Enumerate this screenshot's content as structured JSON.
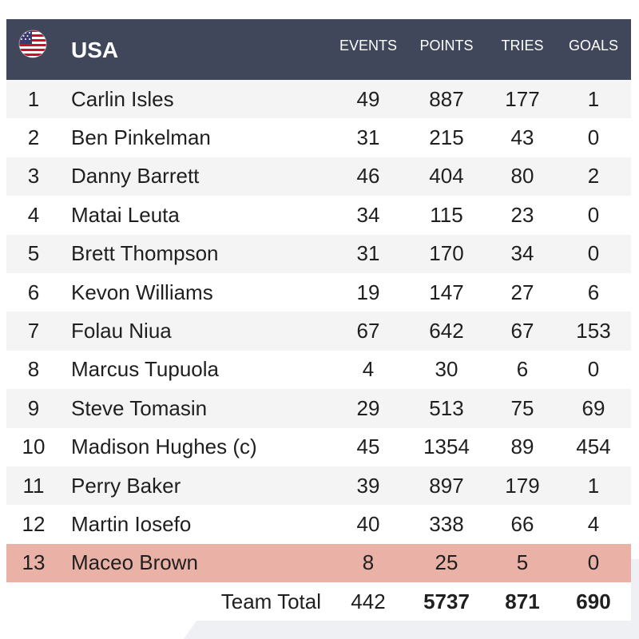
{
  "team": {
    "name": "USA",
    "flag_icon": "us-flag-icon"
  },
  "columns": {
    "events": "EVENTS",
    "points": "POINTS",
    "tries": "TRIES",
    "goals": "GOALS"
  },
  "players": [
    {
      "rank": "1",
      "name": "Carlin Isles",
      "events": "49",
      "points": "887",
      "tries": "177",
      "goals": "1"
    },
    {
      "rank": "2",
      "name": "Ben Pinkelman",
      "events": "31",
      "points": "215",
      "tries": "43",
      "goals": "0"
    },
    {
      "rank": "3",
      "name": "Danny Barrett",
      "events": "46",
      "points": "404",
      "tries": "80",
      "goals": "2"
    },
    {
      "rank": "4",
      "name": "Matai Leuta",
      "events": "34",
      "points": "115",
      "tries": "23",
      "goals": "0"
    },
    {
      "rank": "5",
      "name": "Brett Thompson",
      "events": "31",
      "points": "170",
      "tries": "34",
      "goals": "0"
    },
    {
      "rank": "6",
      "name": "Kevon Williams",
      "events": "19",
      "points": "147",
      "tries": "27",
      "goals": "6"
    },
    {
      "rank": "7",
      "name": "Folau Niua",
      "events": "67",
      "points": "642",
      "tries": "67",
      "goals": "153"
    },
    {
      "rank": "8",
      "name": "Marcus Tupuola",
      "events": "4",
      "points": "30",
      "tries": "6",
      "goals": "0"
    },
    {
      "rank": "9",
      "name": "Steve Tomasin",
      "events": "29",
      "points": "513",
      "tries": "75",
      "goals": "69"
    },
    {
      "rank": "10",
      "name": "Madison Hughes (c)",
      "events": "45",
      "points": "1354",
      "tries": "89",
      "goals": "454"
    },
    {
      "rank": "11",
      "name": "Perry Baker",
      "events": "39",
      "points": "897",
      "tries": "179",
      "goals": "1"
    },
    {
      "rank": "12",
      "name": "Martin Iosefo",
      "events": "40",
      "points": "338",
      "tries": "66",
      "goals": "4"
    },
    {
      "rank": "13",
      "name": "Maceo Brown",
      "events": "8",
      "points": "25",
      "tries": "5",
      "goals": "0"
    }
  ],
  "totals": {
    "label": "Team Total",
    "events": "442",
    "points": "5737",
    "tries": "871",
    "goals": "690"
  },
  "colors": {
    "header_bg": "#40475a",
    "row_alt": "#f4f4f4",
    "highlight_row": "#eab1a6"
  }
}
